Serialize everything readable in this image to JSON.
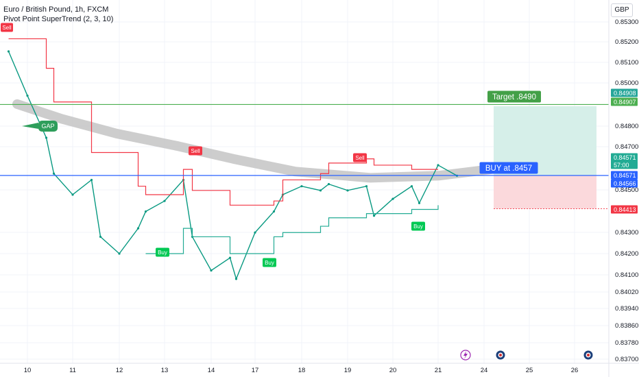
{
  "header": {
    "title": "Euro / British Pound, 1h, FXCM",
    "indicator": "Pivot Point SuperTrend (2, 3, 10)",
    "currency": "GBP"
  },
  "chart_data": {
    "type": "line",
    "xlabel": "",
    "ylabel": "",
    "grid": true,
    "ylim": [
      0.8366,
      0.8536
    ],
    "x_tick_labels": [
      "10",
      "11",
      "12",
      "13",
      "14",
      "17",
      "18",
      "19",
      "20",
      "21",
      "24",
      "25",
      "26"
    ],
    "y_tick_labels": [
      "0.85300",
      "0.85200",
      "0.85100",
      "0.85000",
      "0.84800",
      "0.84700",
      "0.84500",
      "0.84300",
      "0.84200",
      "0.84100",
      "0.84020",
      "0.83940",
      "0.83860",
      "0.83780",
      "0.83700"
    ],
    "series": [
      {
        "name": "",
        "note": "EUR/GBP hourly close (approx.)",
        "color": "#089981",
        "x": [
          "10",
          "10",
          "10",
          "11",
          "11",
          "11",
          "12",
          "12",
          "12",
          "13",
          "13",
          "13",
          "14",
          "14",
          "14",
          "17",
          "17",
          "17",
          "18",
          "18",
          "18",
          "19",
          "19",
          "19",
          "20",
          "20",
          "20",
          "21",
          "21",
          "21"
        ],
        "y": [
          0.8516,
          0.8495,
          0.8475,
          0.8458,
          0.8448,
          0.8455,
          0.8428,
          0.842,
          0.8432,
          0.844,
          0.8445,
          0.8455,
          0.8428,
          0.8412,
          0.8418,
          0.8408,
          0.843,
          0.844,
          0.8448,
          0.8452,
          0.845,
          0.8453,
          0.845,
          0.8452,
          0.8438,
          0.8446,
          0.8452,
          0.8444,
          0.8462,
          0.8457
        ]
      },
      {
        "name": "",
        "note": "SuperTrend upper (sell) line",
        "color": "#f23645",
        "x": [
          "10",
          "10",
          "11",
          "11",
          "12",
          "12",
          "13",
          "13",
          "14",
          "14",
          "17",
          "17",
          "18",
          "18",
          "19",
          "19",
          "20",
          "20",
          "21"
        ],
        "y": [
          0.8522,
          0.8508,
          0.8492,
          0.8468,
          0.8468,
          0.8452,
          0.8448,
          0.846,
          0.845,
          0.8443,
          0.8443,
          0.8445,
          0.8455,
          0.8458,
          0.8463,
          0.8465,
          0.8462,
          0.846,
          0.846
        ]
      },
      {
        "name": "",
        "note": "SuperTrend lower (buy) line",
        "color": "#22ab94",
        "x": [
          "13",
          "13",
          "14",
          "14",
          "17",
          "17",
          "18",
          "18",
          "19",
          "19",
          "20",
          "20",
          "21"
        ],
        "y": [
          0.842,
          0.8432,
          0.8428,
          0.842,
          0.842,
          0.8428,
          0.843,
          0.8433,
          0.8437,
          0.8439,
          0.8439,
          0.8441,
          0.8443
        ]
      }
    ],
    "horizontal_lines": [
      {
        "label": "Target .8490",
        "value": 0.84908,
        "color": "#4caf50"
      },
      {
        "label": "BUY at .8457",
        "value": 0.84571,
        "color": "#2962ff"
      }
    ],
    "price_labels": [
      {
        "text": "0.84908",
        "value": 0.84908,
        "color": "#26a69a"
      },
      {
        "text": "0.84907",
        "value": 0.84907,
        "color": "#4caf50"
      },
      {
        "text": "0.84571",
        "value": 0.84571,
        "color": "#22ab94"
      },
      {
        "text": "57:00",
        "value": 0.84571,
        "color": "#22ab94"
      },
      {
        "text": "0.84571",
        "value": 0.84571,
        "color": "#2962ff"
      },
      {
        "text": "0.84566",
        "value": 0.84566,
        "color": "#2962ff"
      },
      {
        "text": "0.84413",
        "value": 0.84413,
        "color": "#f23645"
      }
    ],
    "position": {
      "entry": 0.8457,
      "target": 0.849,
      "stop": 0.84413
    },
    "annotations": [
      {
        "text": "Sell",
        "type": "sell-marker"
      },
      {
        "text": "Sell",
        "type": "sell-marker"
      },
      {
        "text": "Sell",
        "type": "sell-marker"
      },
      {
        "text": "Buy",
        "type": "buy-marker"
      },
      {
        "text": "Buy",
        "type": "buy-marker"
      },
      {
        "text": "Buy",
        "type": "buy-marker"
      },
      {
        "text": "GAP",
        "type": "callout"
      },
      {
        "text": "Target .8490",
        "type": "target-label"
      },
      {
        "text": "BUY at .8457",
        "type": "entry-label"
      }
    ],
    "colors": {
      "up": "#089981",
      "down": "#f23645",
      "profit_zone": "#d6efe9",
      "loss_zone": "#fbd9dc",
      "trend_band": "#c8c8c8"
    }
  }
}
